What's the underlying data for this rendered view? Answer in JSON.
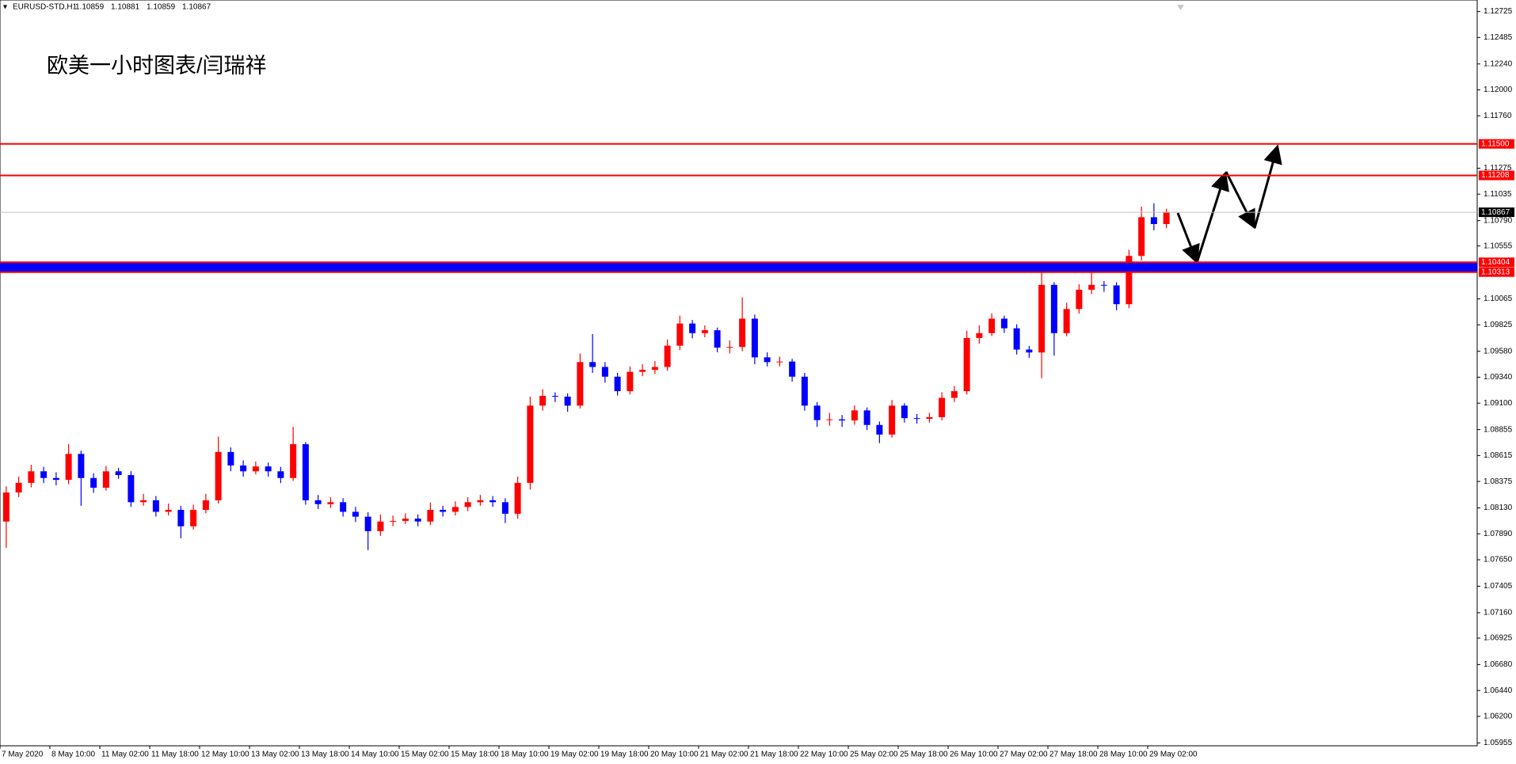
{
  "chart_data": {
    "type": "candlestick",
    "symbol": "EURUSD-STD,H1",
    "quote": [
      1.10859,
      1.10881,
      1.10859,
      1.10867
    ],
    "title": "欧美一小时图表/闫瑞祥",
    "up_color": "#ff0000",
    "down_color": "#0000ff",
    "ylim": [
      1.05928,
      1.12832
    ],
    "yticks": [
      {
        "value": 1.12725,
        "label": "1.12725"
      },
      {
        "value": 1.12485,
        "label": "1.12485"
      },
      {
        "value": 1.1224,
        "label": "1.12240"
      },
      {
        "value": 1.12,
        "label": "1.12000"
      },
      {
        "value": 1.1176,
        "label": "1.11760"
      },
      {
        "value": 1.11275,
        "label": "1.11275"
      },
      {
        "value": 1.11035,
        "label": "1.11035"
      },
      {
        "value": 1.1079,
        "label": "1.10790"
      },
      {
        "value": 1.10555,
        "label": "1.10555"
      },
      {
        "value": 1.10065,
        "label": "1.10065"
      },
      {
        "value": 1.09825,
        "label": "1.09825"
      },
      {
        "value": 1.0958,
        "label": "1.09580"
      },
      {
        "value": 1.0934,
        "label": "1.09340"
      },
      {
        "value": 1.091,
        "label": "1.09100"
      },
      {
        "value": 1.08855,
        "label": "1.08855"
      },
      {
        "value": 1.08615,
        "label": "1.08615"
      },
      {
        "value": 1.08375,
        "label": "1.08375"
      },
      {
        "value": 1.0813,
        "label": "1.08130"
      },
      {
        "value": 1.0789,
        "label": "1.07890"
      },
      {
        "value": 1.0765,
        "label": "1.07650"
      },
      {
        "value": 1.07405,
        "label": "1.07405"
      },
      {
        "value": 1.0716,
        "label": "1.07160"
      },
      {
        "value": 1.06925,
        "label": "1.06925"
      },
      {
        "value": 1.0668,
        "label": "1.06680"
      },
      {
        "value": 1.0644,
        "label": "1.06440"
      },
      {
        "value": 1.062,
        "label": "1.06200"
      },
      {
        "value": 1.05955,
        "label": "1.05955"
      }
    ],
    "x_labels": [
      "7 May 2020",
      "8 May 10:00",
      "11 May 02:00",
      "11 May 18:00",
      "12 May 10:00",
      "13 May 02:00",
      "13 May 18:00",
      "14 May 10:00",
      "15 May 02:00",
      "15 May 18:00",
      "18 May 10:00",
      "19 May 02:00",
      "19 May 18:00",
      "20 May 10:00",
      "21 May 02:00",
      "21 May 18:00",
      "22 May 10:00",
      "25 May 02:00",
      "25 May 18:00",
      "26 May 10:00",
      "27 May 02:00",
      "27 May 18:00",
      "28 May 10:00",
      "29 May 02:00"
    ],
    "levels": [
      {
        "value": 1.115,
        "label": "1.11500",
        "color": "#ff0000"
      },
      {
        "value": 1.11208,
        "label": "1.11208",
        "color": "#ff0000"
      },
      {
        "value": 1.10867,
        "label": "1.10867",
        "color": "#000000"
      }
    ],
    "zone": {
      "high": {
        "value": 1.10404,
        "label": "1.10404"
      },
      "low": {
        "value": 1.10313,
        "label": "1.10313"
      },
      "color": "#0000ff",
      "border": "#ff0000"
    },
    "open": [
      1.08004,
      1.08273,
      1.08362,
      1.08469,
      1.08407,
      1.0839,
      1.0863,
      1.08407,
      1.08317,
      1.08469,
      1.08434,
      1.08183,
      1.08201,
      1.08094,
      1.08112,
      1.0796,
      1.08112,
      1.08201,
      1.08648,
      1.08523,
      1.08469,
      1.08514,
      1.08469,
      1.08407,
      1.0872,
      1.08201,
      1.08165,
      1.08183,
      1.08094,
      1.08049,
      1.07915,
      1.08004,
      1.0801,
      1.08031,
      1.08004,
      1.08112,
      1.08094,
      1.08139,
      1.08183,
      1.08201,
      1.08183,
      1.08076,
      1.08362,
      1.09077,
      1.09167,
      1.0916,
      1.09077,
      1.0948,
      1.09435,
      1.09345,
      1.09211,
      1.0939,
      1.09408,
      1.09435,
      1.09632,
      1.09837,
      1.09748,
      1.09775,
      1.09614,
      1.0962,
      1.09882,
      1.09524,
      1.0948,
      1.09485,
      1.09345,
      1.09077,
      1.08943,
      1.0895,
      1.0894,
      1.09033,
      1.08898,
      1.08809,
      1.09077,
      1.08961,
      1.08955,
      1.0897,
      1.09149,
      1.09211,
      1.09703,
      1.09748,
      1.09882,
      1.09793,
      1.09596,
      1.09569,
      1.10195,
      1.09748,
      1.09971,
      1.1015,
      1.10195,
      1.1019,
      1.10016,
      1.10463,
      1.10821,
      1.10758
    ],
    "high": [
      1.0833,
      1.0842,
      1.0853,
      1.0851,
      1.0846,
      1.0872,
      1.0866,
      1.0845,
      1.0852,
      1.085,
      1.0847,
      1.0826,
      1.0824,
      1.0817,
      1.0815,
      1.0816,
      1.0826,
      1.0879,
      1.0869,
      1.0857,
      1.0856,
      1.0855,
      1.0851,
      1.0888,
      1.0874,
      1.0825,
      1.0823,
      1.0822,
      1.0814,
      1.0809,
      1.0807,
      1.0806,
      1.0808,
      1.0807,
      1.0818,
      1.0815,
      1.0819,
      1.0823,
      1.0825,
      1.0824,
      1.0822,
      1.0842,
      1.0916,
      1.0923,
      1.092,
      1.0919,
      1.0956,
      1.0974,
      1.0948,
      1.0938,
      1.0944,
      1.0946,
      1.0949,
      1.0969,
      1.0991,
      1.0987,
      1.0982,
      1.098,
      1.0968,
      1.1008,
      1.0992,
      1.0957,
      1.0953,
      1.0951,
      1.0938,
      1.0911,
      1.0901,
      1.0899,
      1.0908,
      1.0906,
      1.0893,
      1.0913,
      1.091,
      1.09,
      1.0901,
      1.092,
      1.0926,
      1.0977,
      1.0982,
      1.0993,
      1.0991,
      1.0983,
      1.0963,
      1.1033,
      1.1022,
      1.1003,
      1.102,
      1.1033,
      1.1023,
      1.1022,
      1.1052,
      1.1092,
      1.1095,
      1.109
    ],
    "low": [
      1.0776,
      1.0823,
      1.0832,
      1.0836,
      1.0834,
      1.0835,
      1.0815,
      1.0827,
      1.0829,
      1.084,
      1.0814,
      1.0815,
      1.0805,
      1.0806,
      1.0785,
      1.0793,
      1.0808,
      1.0817,
      1.0847,
      1.0842,
      1.0844,
      1.0842,
      1.0836,
      1.0838,
      1.0816,
      1.0812,
      1.0813,
      1.0805,
      1.08,
      1.0774,
      1.0787,
      1.0796,
      1.0798,
      1.0796,
      1.0797,
      1.0805,
      1.0806,
      1.081,
      1.0815,
      1.0814,
      1.0799,
      1.0803,
      1.083,
      1.0903,
      1.0911,
      1.0902,
      1.0905,
      1.0938,
      1.0929,
      1.0917,
      1.0918,
      1.0935,
      1.0937,
      1.094,
      1.0959,
      1.097,
      1.0971,
      1.0957,
      1.0956,
      1.0958,
      1.0946,
      1.0944,
      1.0944,
      1.093,
      1.0903,
      1.0888,
      1.0889,
      1.0888,
      1.089,
      1.0885,
      1.0873,
      1.0878,
      1.0892,
      1.0891,
      1.0892,
      1.0894,
      1.0911,
      1.0918,
      1.0965,
      1.0972,
      1.0975,
      1.0955,
      1.0952,
      1.0933,
      1.0954,
      1.0972,
      1.0993,
      1.1011,
      1.1013,
      1.0996,
      1.0998,
      1.1042,
      1.107,
      1.1072
    ],
    "close": [
      1.08273,
      1.08362,
      1.08469,
      1.08407,
      1.0839,
      1.0863,
      1.08407,
      1.08317,
      1.08469,
      1.08434,
      1.08183,
      1.08201,
      1.08094,
      1.08112,
      1.0796,
      1.08112,
      1.08201,
      1.08648,
      1.08523,
      1.08469,
      1.08514,
      1.08469,
      1.08407,
      1.0872,
      1.08201,
      1.08165,
      1.08183,
      1.08094,
      1.08049,
      1.07915,
      1.08004,
      1.0801,
      1.08031,
      1.08004,
      1.08112,
      1.08094,
      1.08139,
      1.08183,
      1.08201,
      1.08183,
      1.08076,
      1.08362,
      1.09077,
      1.09167,
      1.0916,
      1.09077,
      1.0948,
      1.09435,
      1.09345,
      1.09211,
      1.0939,
      1.09408,
      1.09435,
      1.09632,
      1.09837,
      1.09748,
      1.09775,
      1.09614,
      1.0962,
      1.09882,
      1.09524,
      1.0948,
      1.09485,
      1.09345,
      1.09077,
      1.08943,
      1.0895,
      1.0894,
      1.09033,
      1.08898,
      1.08809,
      1.09077,
      1.08961,
      1.08955,
      1.0897,
      1.09149,
      1.09211,
      1.09703,
      1.09748,
      1.09882,
      1.09793,
      1.09596,
      1.09569,
      1.10195,
      1.09748,
      1.09971,
      1.1015,
      1.10195,
      1.1019,
      1.10016,
      1.10463,
      1.10821,
      1.10758,
      1.10867
    ]
  }
}
